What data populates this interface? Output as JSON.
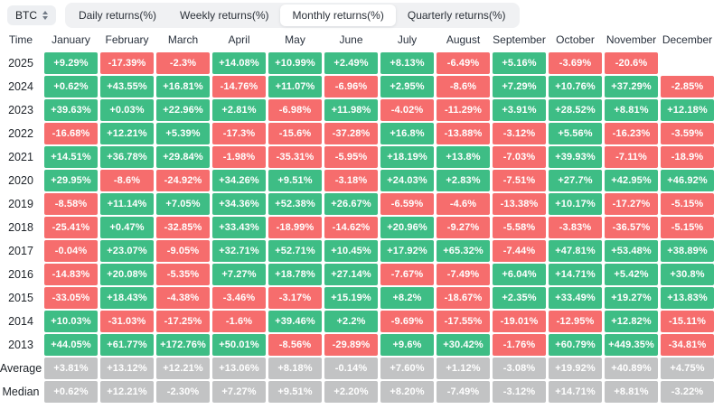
{
  "toolbar": {
    "symbol": "BTC",
    "tabs": [
      {
        "label": "Daily returns(%)",
        "active": false
      },
      {
        "label": "Weekly returns(%)",
        "active": false
      },
      {
        "label": "Monthly returns(%)",
        "active": true
      },
      {
        "label": "Quarterly returns(%)",
        "active": false
      }
    ]
  },
  "colors": {
    "positive": "#3ebd85",
    "negative": "#f66d6d",
    "summary": "#c2c3c4"
  },
  "table": {
    "time_header": "Time",
    "months": [
      "January",
      "February",
      "March",
      "April",
      "May",
      "June",
      "July",
      "August",
      "September",
      "October",
      "November",
      "December"
    ],
    "rows": [
      {
        "label": "2025",
        "type": "year",
        "cells": [
          "+9.29%",
          "-17.39%",
          "-2.3%",
          "+14.08%",
          "+10.99%",
          "+2.49%",
          "+8.13%",
          "-6.49%",
          "+5.16%",
          "-3.69%",
          "-20.6%",
          null
        ]
      },
      {
        "label": "2024",
        "type": "year",
        "cells": [
          "+0.62%",
          "+43.55%",
          "+16.81%",
          "-14.76%",
          "+11.07%",
          "-6.96%",
          "+2.95%",
          "-8.6%",
          "+7.29%",
          "+10.76%",
          "+37.29%",
          "-2.85%"
        ]
      },
      {
        "label": "2023",
        "type": "year",
        "cells": [
          "+39.63%",
          "+0.03%",
          "+22.96%",
          "+2.81%",
          "-6.98%",
          "+11.98%",
          "-4.02%",
          "-11.29%",
          "+3.91%",
          "+28.52%",
          "+8.81%",
          "+12.18%"
        ]
      },
      {
        "label": "2022",
        "type": "year",
        "cells": [
          "-16.68%",
          "+12.21%",
          "+5.39%",
          "-17.3%",
          "-15.6%",
          "-37.28%",
          "+16.8%",
          "-13.88%",
          "-3.12%",
          "+5.56%",
          "-16.23%",
          "-3.59%"
        ]
      },
      {
        "label": "2021",
        "type": "year",
        "cells": [
          "+14.51%",
          "+36.78%",
          "+29.84%",
          "-1.98%",
          "-35.31%",
          "-5.95%",
          "+18.19%",
          "+13.8%",
          "-7.03%",
          "+39.93%",
          "-7.11%",
          "-18.9%"
        ]
      },
      {
        "label": "2020",
        "type": "year",
        "cells": [
          "+29.95%",
          "-8.6%",
          "-24.92%",
          "+34.26%",
          "+9.51%",
          "-3.18%",
          "+24.03%",
          "+2.83%",
          "-7.51%",
          "+27.7%",
          "+42.95%",
          "+46.92%"
        ]
      },
      {
        "label": "2019",
        "type": "year",
        "cells": [
          "-8.58%",
          "+11.14%",
          "+7.05%",
          "+34.36%",
          "+52.38%",
          "+26.67%",
          "-6.59%",
          "-4.6%",
          "-13.38%",
          "+10.17%",
          "-17.27%",
          "-5.15%"
        ]
      },
      {
        "label": "2018",
        "type": "year",
        "cells": [
          "-25.41%",
          "+0.47%",
          "-32.85%",
          "+33.43%",
          "-18.99%",
          "-14.62%",
          "+20.96%",
          "-9.27%",
          "-5.58%",
          "-3.83%",
          "-36.57%",
          "-5.15%"
        ]
      },
      {
        "label": "2017",
        "type": "year",
        "cells": [
          "-0.04%",
          "+23.07%",
          "-9.05%",
          "+32.71%",
          "+52.71%",
          "+10.45%",
          "+17.92%",
          "+65.32%",
          "-7.44%",
          "+47.81%",
          "+53.48%",
          "+38.89%"
        ]
      },
      {
        "label": "2016",
        "type": "year",
        "cells": [
          "-14.83%",
          "+20.08%",
          "-5.35%",
          "+7.27%",
          "+18.78%",
          "+27.14%",
          "-7.67%",
          "-7.49%",
          "+6.04%",
          "+14.71%",
          "+5.42%",
          "+30.8%"
        ]
      },
      {
        "label": "2015",
        "type": "year",
        "cells": [
          "-33.05%",
          "+18.43%",
          "-4.38%",
          "-3.46%",
          "-3.17%",
          "+15.19%",
          "+8.2%",
          "-18.67%",
          "+2.35%",
          "+33.49%",
          "+19.27%",
          "+13.83%"
        ]
      },
      {
        "label": "2014",
        "type": "year",
        "cells": [
          "+10.03%",
          "-31.03%",
          "-17.25%",
          "-1.6%",
          "+39.46%",
          "+2.2%",
          "-9.69%",
          "-17.55%",
          "-19.01%",
          "-12.95%",
          "+12.82%",
          "-15.11%"
        ]
      },
      {
        "label": "2013",
        "type": "year",
        "cells": [
          "+44.05%",
          "+61.77%",
          "+172.76%",
          "+50.01%",
          "-8.56%",
          "-29.89%",
          "+9.6%",
          "+30.42%",
          "-1.76%",
          "+60.79%",
          "+449.35%",
          "-34.81%"
        ]
      },
      {
        "label": "Average",
        "type": "summary",
        "cells": [
          "+3.81%",
          "+13.12%",
          "+12.21%",
          "+13.06%",
          "+8.18%",
          "-0.14%",
          "+7.60%",
          "+1.12%",
          "-3.08%",
          "+19.92%",
          "+40.89%",
          "+4.75%"
        ]
      },
      {
        "label": "Median",
        "type": "summary",
        "cells": [
          "+0.62%",
          "+12.21%",
          "-2.30%",
          "+7.27%",
          "+9.51%",
          "+2.20%",
          "+8.20%",
          "-7.49%",
          "-3.12%",
          "+14.71%",
          "+8.81%",
          "-3.22%"
        ]
      }
    ]
  }
}
